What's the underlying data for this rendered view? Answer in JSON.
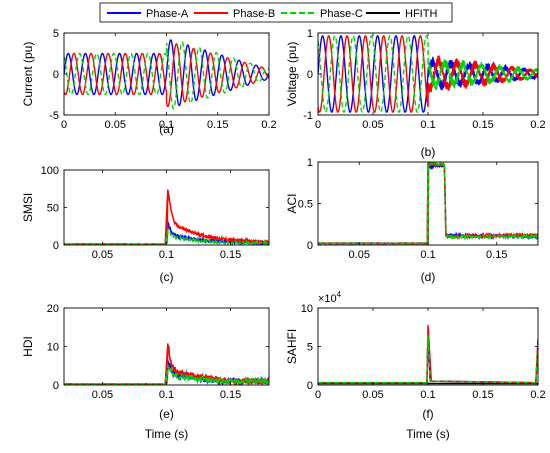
{
  "legend": {
    "entries": [
      {
        "name": "Phase-A",
        "color": "#0000ff",
        "dash": "solid"
      },
      {
        "name": "Phase-B",
        "color": "#ff0000",
        "dash": "solid"
      },
      {
        "name": "Phase-C",
        "color": "#00d400",
        "dash": "dashed"
      },
      {
        "name": "HFITH",
        "color": "#000000",
        "dash": "solid"
      }
    ],
    "placement": "top-center"
  },
  "chart_data": [
    {
      "id": "a",
      "type": "line",
      "panel_label": "(a)",
      "xlabel": "",
      "ylabel": "Current (pu)",
      "xlim": [
        0,
        0.2
      ],
      "ylim": [
        -5,
        5
      ],
      "xticks": [
        "0",
        "0.05",
        "0.1",
        "0.15",
        "0.2"
      ],
      "yticks": [
        "-5",
        "0",
        "5"
      ],
      "frequency_hz": 60,
      "series": [
        {
          "name": "Phase-A",
          "values": [
            {
              "t": 0,
              "amplitude": 2.5
            },
            {
              "t": 0.1,
              "amplitude": 2.5
            },
            {
              "t": 0.1,
              "amplitude": 4.3
            },
            {
              "t": 0.2,
              "amplitude": 0.6
            }
          ]
        },
        {
          "name": "Phase-B",
          "values": [
            {
              "t": 0,
              "amplitude": 2.5
            },
            {
              "t": 0.1,
              "amplitude": 2.5
            },
            {
              "t": 0.1,
              "amplitude": 4.0
            },
            {
              "t": 0.2,
              "amplitude": 0.6
            }
          ]
        },
        {
          "name": "Phase-C",
          "values": [
            {
              "t": 0,
              "amplitude": 2.5
            },
            {
              "t": 0.1,
              "amplitude": 2.5
            },
            {
              "t": 0.1,
              "amplitude": 4.5
            },
            {
              "t": 0.2,
              "amplitude": 0.6
            }
          ]
        }
      ]
    },
    {
      "id": "b",
      "type": "line",
      "panel_label": "(b)",
      "xlabel": "",
      "ylabel": "Voltage (pu)",
      "xlim": [
        0,
        0.2
      ],
      "ylim": [
        -1,
        1
      ],
      "xticks": [
        "0",
        "0.05",
        "0.1",
        "0.15",
        "0.2"
      ],
      "yticks": [
        "-1",
        "0",
        "1"
      ],
      "frequency_hz": 60,
      "series": [
        {
          "name": "Phase-A",
          "values": [
            {
              "t": 0,
              "amplitude": 0.93
            },
            {
              "t": 0.1,
              "amplitude": 0.93
            },
            {
              "t": 0.1,
              "amplitude": 0.3
            },
            {
              "t": 0.2,
              "amplitude": 0.08
            }
          ]
        },
        {
          "name": "Phase-B",
          "values": [
            {
              "t": 0,
              "amplitude": 0.93
            },
            {
              "t": 0.1,
              "amplitude": 0.93
            },
            {
              "t": 0.1,
              "amplitude": 0.35
            },
            {
              "t": 0.2,
              "amplitude": 0.08
            }
          ]
        },
        {
          "name": "Phase-C",
          "values": [
            {
              "t": 0,
              "amplitude": 0.93
            },
            {
              "t": 0.1,
              "amplitude": 0.93
            },
            {
              "t": 0.1,
              "amplitude": 0.3
            },
            {
              "t": 0.2,
              "amplitude": 0.1
            }
          ]
        }
      ]
    },
    {
      "id": "c",
      "type": "line",
      "panel_label": "(c)",
      "xlabel": "",
      "ylabel": "SMSI",
      "xlim": [
        0.02,
        0.18
      ],
      "ylim": [
        0,
        100
      ],
      "xticks": [
        "0.05",
        "0.1",
        "0.15"
      ],
      "yticks": [
        "0",
        "50",
        "100"
      ],
      "series": [
        {
          "name": "Phase-A",
          "points": [
            [
              0.02,
              1
            ],
            [
              0.099,
              1
            ],
            [
              0.101,
              30
            ],
            [
              0.104,
              16
            ],
            [
              0.11,
              11
            ],
            [
              0.12,
              8
            ],
            [
              0.13,
              6
            ],
            [
              0.14,
              5
            ],
            [
              0.15,
              4
            ],
            [
              0.16,
              4
            ],
            [
              0.17,
              3
            ],
            [
              0.18,
              3
            ]
          ]
        },
        {
          "name": "Phase-B",
          "points": [
            [
              0.02,
              1
            ],
            [
              0.099,
              1
            ],
            [
              0.101,
              74
            ],
            [
              0.103,
              52
            ],
            [
              0.106,
              30
            ],
            [
              0.11,
              24
            ],
            [
              0.12,
              17
            ],
            [
              0.13,
              12
            ],
            [
              0.14,
              9
            ],
            [
              0.15,
              7
            ],
            [
              0.16,
              6
            ],
            [
              0.17,
              4
            ],
            [
              0.18,
              4
            ]
          ]
        },
        {
          "name": "Phase-C",
          "points": [
            [
              0.02,
              1
            ],
            [
              0.099,
              1
            ],
            [
              0.101,
              22
            ],
            [
              0.104,
              12
            ],
            [
              0.11,
              9
            ],
            [
              0.12,
              7
            ],
            [
              0.13,
              5
            ],
            [
              0.14,
              4
            ],
            [
              0.15,
              3
            ],
            [
              0.16,
              3
            ],
            [
              0.17,
              3
            ],
            [
              0.18,
              2
            ]
          ]
        }
      ]
    },
    {
      "id": "d",
      "type": "line",
      "panel_label": "(d)",
      "xlabel": "",
      "ylabel": "ACI",
      "xlim": [
        0.02,
        0.18
      ],
      "ylim": [
        0,
        1
      ],
      "xticks": [
        "0.05",
        "0.1",
        "0.15"
      ],
      "yticks": [
        "0",
        "0.5",
        "1"
      ],
      "series": [
        {
          "name": "Phase-A",
          "points": [
            [
              0.02,
              0.02
            ],
            [
              0.1,
              0.02
            ],
            [
              0.1,
              0.95
            ],
            [
              0.112,
              0.95
            ],
            [
              0.113,
              0.12
            ],
            [
              0.18,
              0.1
            ]
          ]
        },
        {
          "name": "Phase-B",
          "points": [
            [
              0.02,
              0.02
            ],
            [
              0.1,
              0.02
            ],
            [
              0.1,
              0.97
            ],
            [
              0.112,
              0.97
            ],
            [
              0.113,
              0.1
            ],
            [
              0.18,
              0.12
            ]
          ]
        },
        {
          "name": "Phase-C",
          "points": [
            [
              0.02,
              0.02
            ],
            [
              0.1,
              0.02
            ],
            [
              0.1,
              0.98
            ],
            [
              0.112,
              0.98
            ],
            [
              0.113,
              0.1
            ],
            [
              0.18,
              0.1
            ]
          ]
        }
      ]
    },
    {
      "id": "e",
      "type": "line",
      "panel_label": "(e)",
      "xlabel": "Time (s)",
      "ylabel": "HDI",
      "xlim": [
        0.02,
        0.18
      ],
      "ylim": [
        0,
        20
      ],
      "xticks": [
        "0.05",
        "0.1",
        "0.15"
      ],
      "yticks": [
        "0",
        "10",
        "20"
      ],
      "series": [
        {
          "name": "Phase-A",
          "points": [
            [
              0.02,
              0.2
            ],
            [
              0.099,
              0.2
            ],
            [
              0.101,
              6
            ],
            [
              0.105,
              3
            ],
            [
              0.11,
              2.5
            ],
            [
              0.12,
              2
            ],
            [
              0.13,
              1.5
            ],
            [
              0.14,
              1
            ],
            [
              0.15,
              1
            ],
            [
              0.16,
              1
            ],
            [
              0.17,
              1
            ],
            [
              0.18,
              1
            ]
          ]
        },
        {
          "name": "Phase-B",
          "points": [
            [
              0.02,
              0.2
            ],
            [
              0.099,
              0.2
            ],
            [
              0.101,
              10.8
            ],
            [
              0.104,
              5
            ],
            [
              0.11,
              3
            ],
            [
              0.12,
              2.5
            ],
            [
              0.13,
              2
            ],
            [
              0.14,
              1.5
            ],
            [
              0.15,
              1
            ],
            [
              0.16,
              1
            ],
            [
              0.17,
              1
            ],
            [
              0.18,
              1
            ]
          ]
        },
        {
          "name": "Phase-C",
          "points": [
            [
              0.02,
              0.2
            ],
            [
              0.099,
              0.2
            ],
            [
              0.101,
              5
            ],
            [
              0.105,
              3
            ],
            [
              0.11,
              2
            ],
            [
              0.12,
              1.8
            ],
            [
              0.13,
              1.4
            ],
            [
              0.14,
              1
            ],
            [
              0.15,
              1
            ],
            [
              0.16,
              1
            ],
            [
              0.17,
              1
            ],
            [
              0.18,
              1
            ]
          ]
        }
      ]
    },
    {
      "id": "f",
      "type": "line",
      "panel_label": "(f)",
      "xlabel": "Time (s)",
      "ylabel": "SAHFI",
      "xlim": [
        0,
        0.2
      ],
      "ylim": [
        0,
        100000
      ],
      "xticks": [
        "0",
        "0.05",
        "0.1",
        "0.15",
        "0.2"
      ],
      "yticks": [
        "0",
        "5",
        "10"
      ],
      "y_multiplier": "×10^4",
      "series": [
        {
          "name": "HFITH",
          "points": [
            [
              0,
              2000
            ],
            [
              0.2,
              2000
            ]
          ]
        },
        {
          "name": "Phase-A",
          "points": [
            [
              0,
              3000
            ],
            [
              0.099,
              3000
            ],
            [
              0.1,
              60000
            ],
            [
              0.102,
              5000
            ],
            [
              0.198,
              3000
            ],
            [
              0.2,
              50000
            ]
          ]
        },
        {
          "name": "Phase-B",
          "points": [
            [
              0,
              3000
            ],
            [
              0.099,
              3000
            ],
            [
              0.1,
              78000
            ],
            [
              0.103,
              5000
            ],
            [
              0.198,
              3000
            ],
            [
              0.2,
              60000
            ]
          ]
        },
        {
          "name": "Phase-C",
          "points": [
            [
              0,
              3000
            ],
            [
              0.099,
              3000
            ],
            [
              0.1,
              65000
            ],
            [
              0.102,
              5000
            ],
            [
              0.198,
              3000
            ],
            [
              0.2,
              52000
            ]
          ]
        }
      ]
    }
  ]
}
